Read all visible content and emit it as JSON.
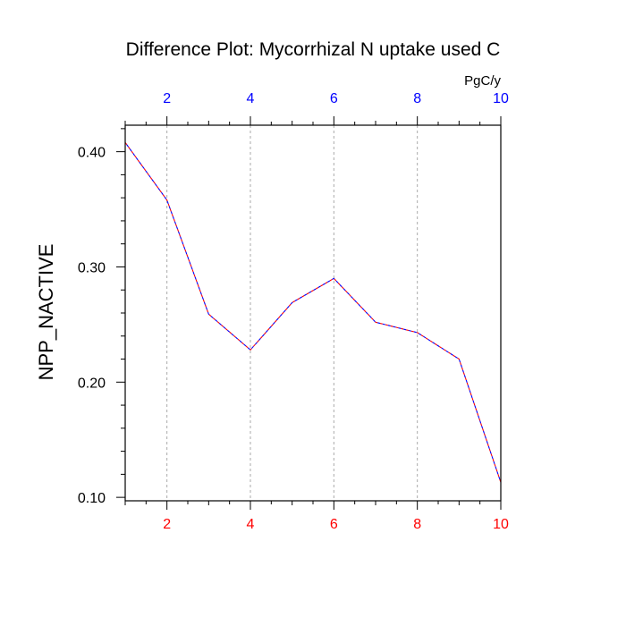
{
  "chart_data": {
    "type": "line",
    "title": "Difference Plot: Mycorrhizal N uptake used C",
    "ylabel": "NPP_NACTIVE",
    "xlabel": "",
    "top_axis_unit": "PgC/y",
    "xlim": [
      1,
      10
    ],
    "ylim": [
      0.097,
      0.423
    ],
    "x_ticks": [
      2,
      4,
      6,
      8,
      10
    ],
    "x_tick_labels": [
      "2",
      "4",
      "6",
      "8",
      "10"
    ],
    "x_minor_ticks": [
      1,
      3,
      5,
      7,
      9
    ],
    "y_ticks": [
      0.1,
      0.2,
      0.3,
      0.4
    ],
    "y_tick_labels": [
      "0.10",
      "0.20",
      "0.30",
      "0.40"
    ],
    "y_minor_step": 0.02,
    "grid": "x-only dashed",
    "series": [
      {
        "x": [
          1,
          2,
          3,
          4,
          5,
          6,
          7,
          8,
          9,
          10
        ],
        "values": [
          0.408,
          0.358,
          0.259,
          0.228,
          0.269,
          0.29,
          0.252,
          0.243,
          0.22,
          0.113
        ],
        "style": "dashed"
      }
    ],
    "colors": {
      "line_red": "#ff0000",
      "line_blue": "#0000ff",
      "bottom_ticks": "#ff0000",
      "top_ticks": "#0000ff",
      "axis": "#000000",
      "grid": "#aaaaaa"
    }
  }
}
